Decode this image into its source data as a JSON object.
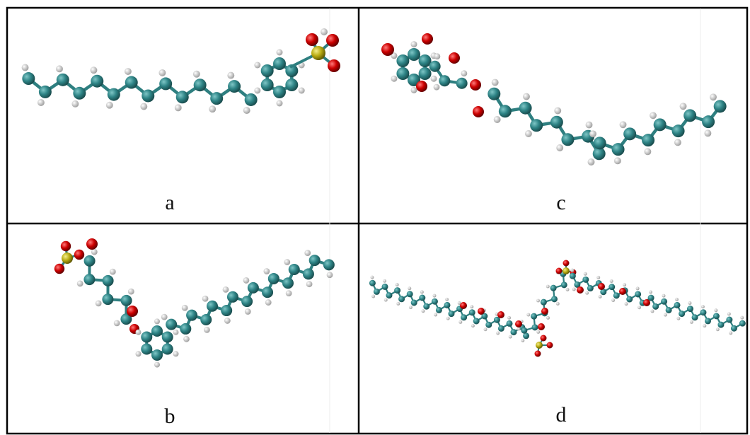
{
  "panels": [
    {
      "label": "a"
    },
    {
      "label": "c"
    },
    {
      "label": "b"
    },
    {
      "label": "d"
    }
  ]
}
